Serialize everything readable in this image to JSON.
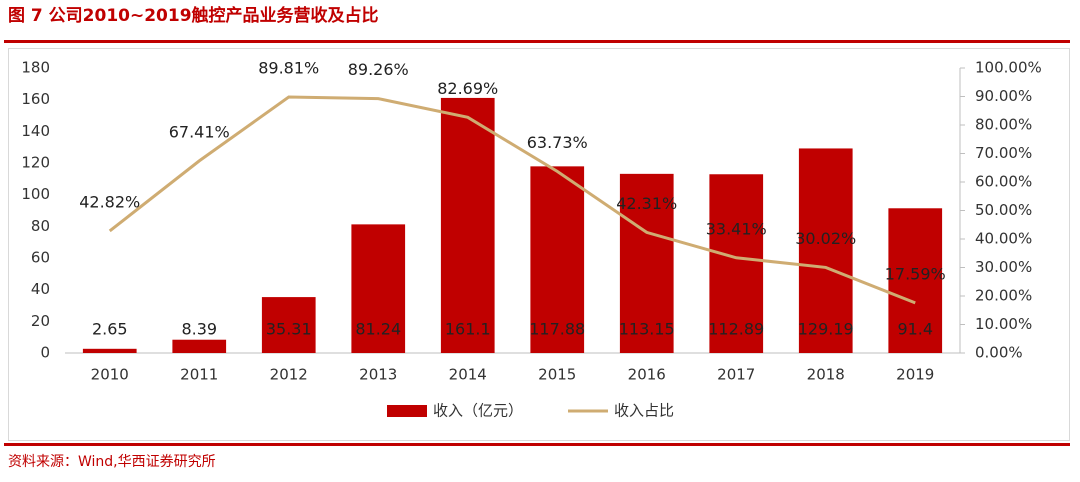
{
  "chart_data": {
    "type": "bar-line",
    "title": "图 7   公司2010~2019触控产品业务营收及占比",
    "source": "资料来源：Wind,华西证券研究所",
    "categories": [
      "2010",
      "2011",
      "2012",
      "2013",
      "2014",
      "2015",
      "2016",
      "2017",
      "2018",
      "2019"
    ],
    "series": [
      {
        "name": "收入（亿元）",
        "type": "bar",
        "color": "#c00000",
        "values": [
          2.65,
          8.39,
          35.31,
          81.24,
          161.1,
          117.88,
          113.15,
          112.89,
          129.19,
          91.4
        ]
      },
      {
        "name": "收入占比",
        "type": "line",
        "axis": "y2",
        "color": "#cfac72",
        "values": [
          42.82,
          67.41,
          89.81,
          89.26,
          82.69,
          63.73,
          42.31,
          33.41,
          30.02,
          17.59
        ],
        "value_labels": [
          "42.82%",
          "67.41%",
          "89.81%",
          "89.26%",
          "82.69%",
          "63.73%",
          "42.31%",
          "33.41%",
          "30.02%",
          "17.59%"
        ]
      }
    ],
    "ylim": [
      0,
      180
    ],
    "yticks": [
      0,
      20,
      40,
      60,
      80,
      100,
      120,
      140,
      160,
      180
    ],
    "y2lim": [
      0,
      100
    ],
    "y2ticks": [
      {
        "value": 0,
        "label": "0.00%"
      },
      {
        "value": 10,
        "label": "10.00%"
      },
      {
        "value": 20,
        "label": "20.00%"
      },
      {
        "value": 30,
        "label": "30.00%"
      },
      {
        "value": 40,
        "label": "40.00%"
      },
      {
        "value": 50,
        "label": "50.00%"
      },
      {
        "value": 60,
        "label": "60.00%"
      },
      {
        "value": 70,
        "label": "70.00%"
      },
      {
        "value": 80,
        "label": "80.00%"
      },
      {
        "value": 90,
        "label": "90.00%"
      },
      {
        "value": 100,
        "label": "100.00%"
      }
    ],
    "legend": "bottom"
  }
}
